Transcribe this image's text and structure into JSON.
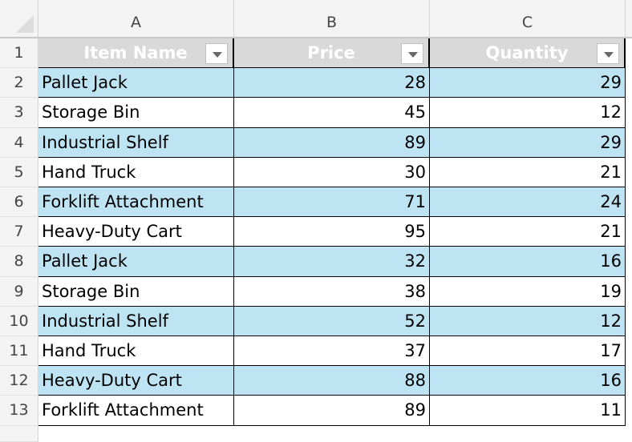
{
  "columns": [
    "A",
    "B",
    "C"
  ],
  "row_numbers": [
    "1",
    "2",
    "3",
    "4",
    "5",
    "6",
    "7",
    "8",
    "9",
    "10",
    "11",
    "12",
    "13"
  ],
  "headers": [
    "Item Name",
    "Price",
    "Quantity"
  ],
  "rows": [
    [
      "Pallet Jack",
      "28",
      "29"
    ],
    [
      "Storage Bin",
      "45",
      "12"
    ],
    [
      "Industrial Shelf",
      "89",
      "29"
    ],
    [
      "Hand Truck",
      "30",
      "21"
    ],
    [
      "Forklift Attachment",
      "71",
      "24"
    ],
    [
      "Heavy-Duty Cart",
      "95",
      "21"
    ],
    [
      "Pallet Jack",
      "32",
      "16"
    ],
    [
      "Storage Bin",
      "38",
      "19"
    ],
    [
      "Industrial Shelf",
      "52",
      "12"
    ],
    [
      "Hand Truck",
      "37",
      "17"
    ],
    [
      "Heavy-Duty Cart",
      "88",
      "16"
    ],
    [
      "Forklift Attachment",
      "89",
      "11"
    ]
  ],
  "colors": {
    "header_fill": "#d9d9d9",
    "band_fill": "#bee4f4"
  }
}
